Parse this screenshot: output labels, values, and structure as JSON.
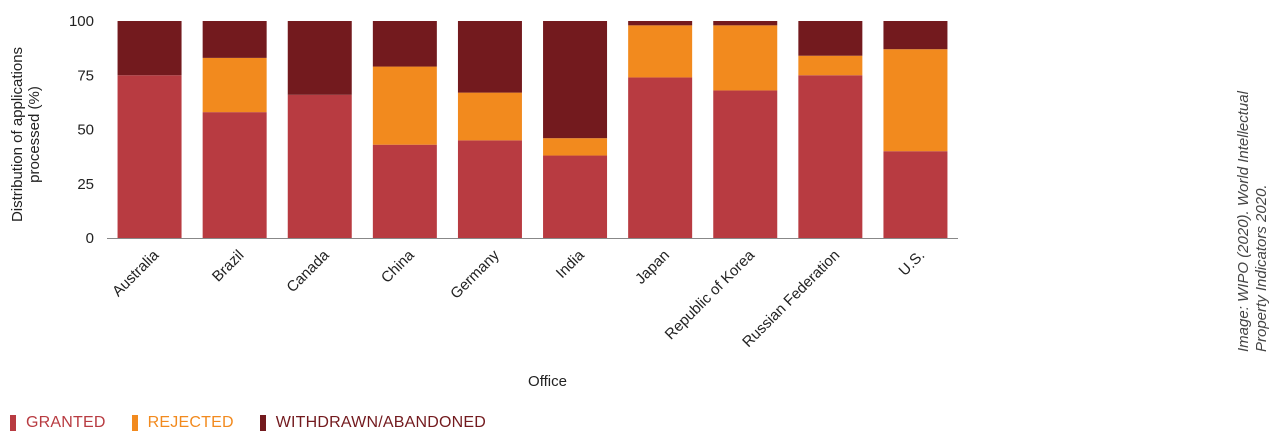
{
  "chart_data": {
    "type": "bar",
    "stacked": true,
    "categories": [
      "Australia",
      "Brazil",
      "Canada",
      "China",
      "Germany",
      "India",
      "Japan",
      "Republic of Korea",
      "Russian Federation",
      "U.S."
    ],
    "series": [
      {
        "name": "GRANTED",
        "color": "#b83b41",
        "values": [
          75,
          58,
          66,
          43,
          45,
          38,
          74,
          68,
          75,
          40
        ]
      },
      {
        "name": "REJECTED",
        "color": "#f28a1e",
        "values": [
          0,
          25,
          0,
          36,
          22,
          8,
          24,
          30,
          9,
          47
        ]
      },
      {
        "name": "WITHDRAWN/ABANDONED",
        "color": "#731a1e",
        "values": [
          25,
          17,
          34,
          21,
          33,
          54,
          2,
          2,
          16,
          13
        ]
      }
    ],
    "ylim": [
      0,
      100
    ],
    "yticks": [
      0,
      25,
      50,
      75,
      100
    ],
    "xlabel": "Office",
    "ylabel": "Distribution of applications processed (%)",
    "ylabel_lines": [
      "Distribution of applications",
      "processed (%)"
    ],
    "legend_position": "bottom-left",
    "grid": false
  },
  "credit_lines": [
    "Image: WIPO (2020). World Intellectual",
    "Property Indicators 2020."
  ]
}
